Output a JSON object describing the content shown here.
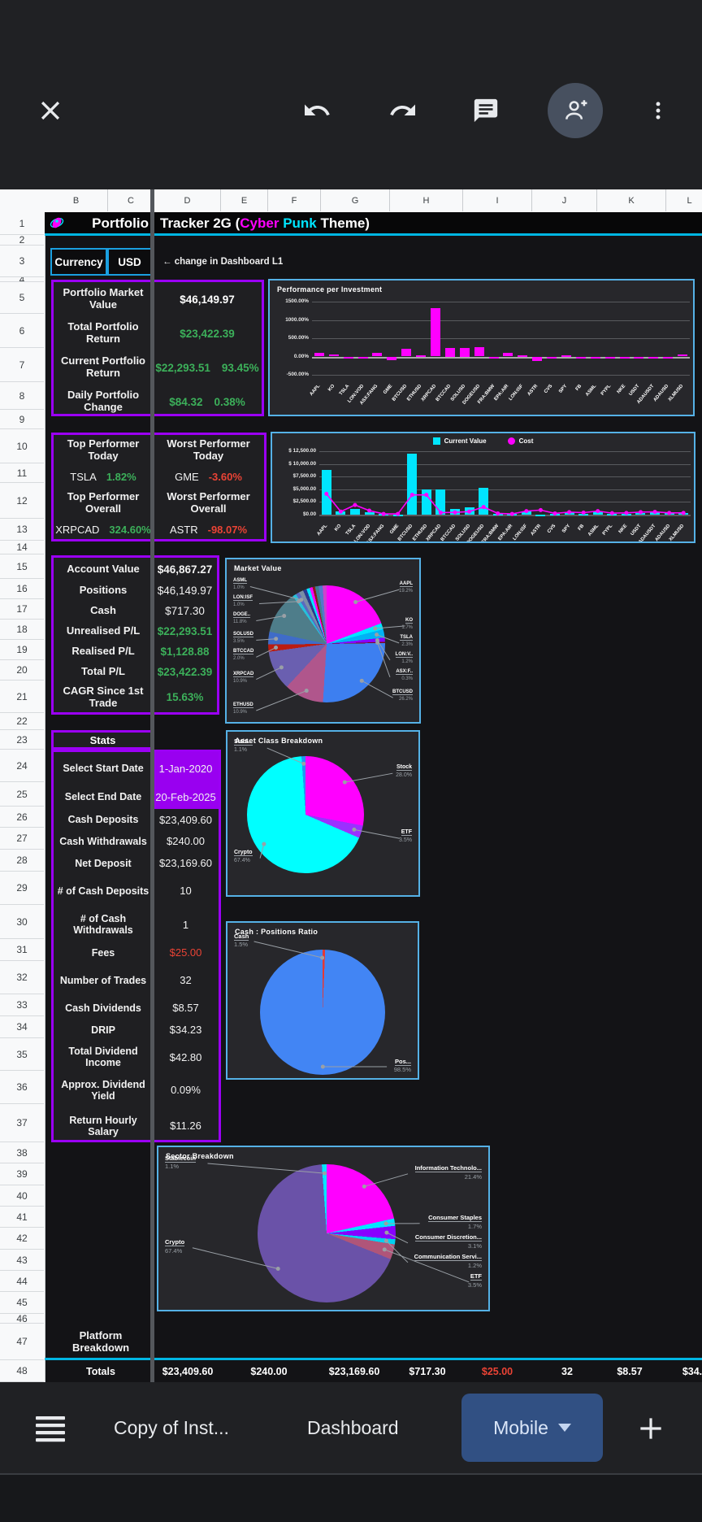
{
  "toolbar": {
    "icons": [
      "close",
      "undo",
      "redo",
      "comment",
      "person-add",
      "overflow-menu"
    ]
  },
  "grid": {
    "column_letters": [
      "B",
      "C",
      "D",
      "E",
      "F",
      "G",
      "H",
      "I",
      "J",
      "K",
      "L"
    ],
    "row_count": 48
  },
  "title_row": {
    "col_bc": "Portfolio",
    "segments": [
      {
        "text": "Tracker 2G (",
        "color": "#ffffff"
      },
      {
        "text": "Cyber",
        "color": "#ff00ff"
      },
      {
        "text": " Punk",
        "color": "#00e5ff"
      },
      {
        "text": " Theme)",
        "color": "#ffffff"
      }
    ]
  },
  "currency": {
    "label": "Currency",
    "value": "USD",
    "note": "← change in Dashboard L1"
  },
  "colors": {
    "accent_purple": "#9b00f5",
    "accent_cyan": "#00b6e3",
    "green": "#3cb05a",
    "red": "#ea4335",
    "magenta": "#ff00ff"
  },
  "summary_table": {
    "rows": [
      {
        "label": "Portfolio Market Value",
        "value": "$46,149.97",
        "pct": "",
        "color": "#ffffff"
      },
      {
        "label": "Total Portfolio Return",
        "value": "$23,422.39",
        "pct": "",
        "color": "#3cb05a"
      },
      {
        "label": "Current Portfolio Return",
        "value": "$22,293.51",
        "pct": "93.45%",
        "color": "#3cb05a"
      },
      {
        "label": "Daily Portfolio Change",
        "value": "$84.32",
        "pct": "0.38%",
        "color": "#3cb05a"
      }
    ]
  },
  "performers": {
    "left": [
      {
        "type": "header",
        "text": "Top Performer Today"
      },
      {
        "type": "data",
        "ticker": "TSLA",
        "pct": "1.82%",
        "pct_color": "#3cb05a"
      },
      {
        "type": "header",
        "text": "Top Performer Overall"
      },
      {
        "type": "data",
        "ticker": "XRPCAD",
        "pct": "324.60%",
        "pct_color": "#3cb05a"
      }
    ],
    "right": [
      {
        "type": "header",
        "text": "Worst Performer Today"
      },
      {
        "type": "data",
        "ticker": "GME",
        "pct": "-3.60%",
        "pct_color": "#ea4335"
      },
      {
        "type": "header",
        "text": "Worst Performer Overall"
      },
      {
        "type": "data",
        "ticker": "ASTR",
        "pct": "-98.07%",
        "pct_color": "#ea4335"
      }
    ]
  },
  "account_table": {
    "rows": [
      {
        "label": "Account Value",
        "value": "$46,867.27",
        "bold": true
      },
      {
        "label": "Positions",
        "value": "$46,149.97"
      },
      {
        "label": "Cash",
        "value": "$717.30"
      },
      {
        "label": "Unrealised P/L",
        "value": "$22,293.51",
        "color": "#3cb05a"
      },
      {
        "label": "Realised P/L",
        "value": "$1,128.88",
        "color": "#3cb05a"
      },
      {
        "label": "Total P/L",
        "value": "$23,422.39",
        "color": "#3cb05a"
      },
      {
        "label": "CAGR Since 1st Trade",
        "value": "15.63%",
        "color": "#3cb05a"
      }
    ]
  },
  "stats": {
    "header": "Stats",
    "rows": [
      {
        "label": "Select Start Date",
        "value": "1-Jan-2020",
        "bg": "#9900f0"
      },
      {
        "label": "Select End Date",
        "value": "20-Feb-2025",
        "bg": "#9900f0"
      },
      {
        "label": "Cash Deposits",
        "value": "$23,409.60"
      },
      {
        "label": "Cash Withdrawals",
        "value": "$240.00"
      },
      {
        "label": "Net Deposit",
        "value": "$23,169.60"
      },
      {
        "label": "# of Cash Deposits",
        "value": "10"
      },
      {
        "label": "# of Cash Withdrawals",
        "value": "1"
      },
      {
        "label": "Fees",
        "value": "$25.00",
        "color": "#ea4335"
      },
      {
        "label": "Number of Trades",
        "value": "32"
      },
      {
        "label": "Cash Dividends",
        "value": "$8.57"
      },
      {
        "label": "DRIP",
        "value": "$34.23"
      },
      {
        "label": "Total Dividend Income",
        "value": "$42.80"
      },
      {
        "label": "Approx. Dividend Yield",
        "value": "0.09%"
      },
      {
        "label": "Return Hourly Salary",
        "value": "$11.26"
      }
    ]
  },
  "platform_row": {
    "label": "Platform Breakdown"
  },
  "totals_row": {
    "label": "Totals",
    "values": [
      {
        "text": "$23,409.60"
      },
      {
        "text": "$240.00"
      },
      {
        "text": "$23,169.60"
      },
      {
        "text": "$717.30"
      },
      {
        "text": "$25.00",
        "color": "#ea4335"
      },
      {
        "text": "32"
      },
      {
        "text": "$8.57"
      },
      {
        "text": "$34."
      }
    ]
  },
  "sheet_tabs": {
    "tabs": [
      {
        "label": "Copy of Inst...",
        "active": false
      },
      {
        "label": "Dashboard",
        "active": false
      },
      {
        "label": "Mobile",
        "active": true,
        "has_dropdown": true
      }
    ]
  },
  "chart_data": [
    {
      "id": "performance",
      "type": "bar",
      "title": "Performance per Investment",
      "categories": [
        "AAPL",
        "KO",
        "TSLA",
        "LON:VOD",
        "ASX:FANG",
        "GME",
        "BTCUSD",
        "ETHUSD",
        "XRPCAD",
        "BTCCAD",
        "SOLUSD",
        "DOGEUSD",
        "FRA:BMW",
        "EPA:AIR",
        "LON:ISF",
        "ASTR",
        "CVS",
        "SPY",
        "FB",
        "ASML",
        "PYPL",
        "NKE",
        "USDT",
        "ADAUSDT",
        "ADAUSD",
        "XLMUSD"
      ],
      "values": [
        110,
        55,
        -45,
        -30,
        110,
        -95,
        205,
        30,
        1330,
        225,
        225,
        255,
        -15,
        95,
        25,
        -130,
        -35,
        40,
        -40,
        -15,
        -45,
        -45,
        -5,
        -30,
        -35,
        45
      ],
      "bar_color": "#ff00ff",
      "ylim": [
        -500,
        1500
      ],
      "yticks": [
        {
          "v": 1500,
          "label": "1500.00%"
        },
        {
          "v": 1000,
          "label": "1000.00%"
        },
        {
          "v": 500,
          "label": "500.00%"
        },
        {
          "v": 0,
          "label": "0.00%"
        },
        {
          "v": -500,
          "label": "-500.00%"
        }
      ]
    },
    {
      "id": "valuecost",
      "type": "bar+line",
      "title": "",
      "legend": [
        {
          "label": "Current Value",
          "color": "#00e5ff",
          "marker": "square"
        },
        {
          "label": "Cost",
          "color": "#ff00ff",
          "marker": "circle"
        }
      ],
      "categories": [
        "AAPL",
        "KO",
        "TSLA",
        "LON:VOD",
        "ASX:FANG",
        "GME",
        "BTCUSD",
        "ETHUSD",
        "XRPCAD",
        "BTCCAD",
        "SOLUSD",
        "DOGEUSD",
        "FRA:BMW",
        "EPA:AIR",
        "LON:ISF",
        "ASTR",
        "CVS",
        "SPY",
        "FB",
        "ASML",
        "PYPL",
        "NKE",
        "USDT",
        "ADAUSDT",
        "ADAUSD",
        "XLMUSD"
      ],
      "series": [
        {
          "name": "Current Value",
          "type": "bar",
          "color": "#00e5ff",
          "values": [
            8800,
            700,
            1100,
            500,
            100,
            50,
            12000,
            4900,
            4900,
            1050,
            1450,
            5300,
            150,
            100,
            700,
            30,
            150,
            500,
            200,
            650,
            120,
            150,
            400,
            450,
            250,
            300
          ]
        },
        {
          "name": "Cost",
          "type": "line",
          "color": "#ff00ff",
          "values": [
            4100,
            600,
            1900,
            800,
            150,
            150,
            3900,
            3900,
            400,
            450,
            600,
            1500,
            250,
            150,
            700,
            900,
            250,
            500,
            400,
            700,
            300,
            350,
            500,
            550,
            350,
            350
          ]
        }
      ],
      "ylim": [
        0,
        12500
      ],
      "yticks": [
        {
          "v": 12500,
          "label": "$ 12,500.00"
        },
        {
          "v": 10000,
          "label": "$ 10,000.00"
        },
        {
          "v": 7500,
          "label": "$7,500.00"
        },
        {
          "v": 5000,
          "label": "$5,000.00"
        },
        {
          "v": 2500,
          "label": "$2,500.00"
        },
        {
          "v": 0,
          "label": "$0.00"
        }
      ]
    },
    {
      "id": "market-value",
      "type": "pie",
      "title": "Market Value",
      "slices": [
        {
          "name": "AAPL",
          "pct": 19.2,
          "color": "#ff00ff",
          "side": "right"
        },
        {
          "name": "KO",
          "pct": 1.7,
          "color": "#00e5ff",
          "side": "right"
        },
        {
          "name": "TSLA",
          "pct": 2.3,
          "color": "#00b2f5",
          "side": "right"
        },
        {
          "name": "LON:V..",
          "pct": 1.2,
          "color": "#8800ff",
          "side": "right"
        },
        {
          "name": "ASX:F..",
          "pct": 0.3,
          "color": "#7a1010",
          "side": "right"
        },
        {
          "name": "BTCUSD",
          "pct": 26.2,
          "color": "#3d7ff0",
          "side": "right"
        },
        {
          "name": "ETHUSD",
          "pct": 10.9,
          "color": "#b0568c",
          "side": "left"
        },
        {
          "name": "XRPCAD",
          "pct": 10.9,
          "color": "#6a5fb0",
          "side": "left"
        },
        {
          "name": "BTCCAD",
          "pct": 2.0,
          "color": "#bb1c10",
          "side": "left"
        },
        {
          "name": "SOLUSD",
          "pct": 3.5,
          "color": "#3f6cc8",
          "side": "left"
        },
        {
          "name": "DOGE..",
          "pct": 11.8,
          "color": "#4e7d8a",
          "side": "left"
        },
        {
          "name": "LON:ISF",
          "pct": 1.0,
          "color": "#26c0da",
          "side": "left"
        },
        {
          "name": "ASML",
          "pct": 1.0,
          "color": "#5a6abf",
          "side": "left"
        },
        {
          "name": "",
          "pct": 1.2,
          "color": "#7a8fa6"
        },
        {
          "name": "",
          "pct": 1.0,
          "color": "#2b3a8f"
        },
        {
          "name": "",
          "pct": 0.9,
          "color": "#00e5ff"
        },
        {
          "name": "",
          "pct": 0.8,
          "color": "#ff00ff"
        },
        {
          "name": "",
          "pct": 0.7,
          "color": "#8b1a1a"
        },
        {
          "name": "",
          "pct": 1.0,
          "color": "#3f7f8f"
        },
        {
          "name": "",
          "pct": 1.1,
          "color": "#5577cc"
        },
        {
          "name": "",
          "pct": 1.1,
          "color": "#cc44cc"
        }
      ]
    },
    {
      "id": "asset-class",
      "type": "pie",
      "title": "Asset Class Breakdown",
      "slices": [
        {
          "name": "Stock",
          "pct": 28.0,
          "color": "#ff00ff",
          "side": "right"
        },
        {
          "name": "ETF",
          "pct": 3.5,
          "color": "#9b30ff",
          "side": "right"
        },
        {
          "name": "Crypto",
          "pct": 67.4,
          "color": "#00ffff",
          "side": "left"
        },
        {
          "name": "Stabl...",
          "pct": 1.1,
          "color": "#2196f3",
          "side": "left"
        }
      ]
    },
    {
      "id": "cash-positions",
      "type": "pie",
      "title": "Cash : Positions Ratio",
      "start_angle": -3,
      "slices": [
        {
          "name": "Cash",
          "pct": 1.5,
          "color": "#e53935",
          "side": "left"
        },
        {
          "name": "Pos...",
          "pct": 98.5,
          "color": "#4285f4",
          "side": "right"
        }
      ]
    },
    {
      "id": "sector",
      "type": "pie",
      "title": "Sector Breakdown",
      "slices": [
        {
          "name": "Information Technolo...",
          "pct": 21.4,
          "color": "#ff00ff",
          "side": "right"
        },
        {
          "name": "Consumer Staples",
          "pct": 1.7,
          "color": "#00e5ff",
          "side": "right"
        },
        {
          "name": "Consumer Discretion...",
          "pct": 3.1,
          "color": "#8800ff",
          "side": "right"
        },
        {
          "name": "Communication Servi...",
          "pct": 1.2,
          "color": "#00d0f0",
          "side": "right"
        },
        {
          "name": "ETF",
          "pct": 3.5,
          "color": "#b05579",
          "side": "right"
        },
        {
          "name": "Crypto",
          "pct": 67.4,
          "color": "#6a52a8",
          "side": "left",
          "label_angle": 262
        },
        {
          "name": "Stablecoin",
          "pct": 1.1,
          "color": "#00e5ff",
          "side": "left"
        }
      ]
    }
  ]
}
